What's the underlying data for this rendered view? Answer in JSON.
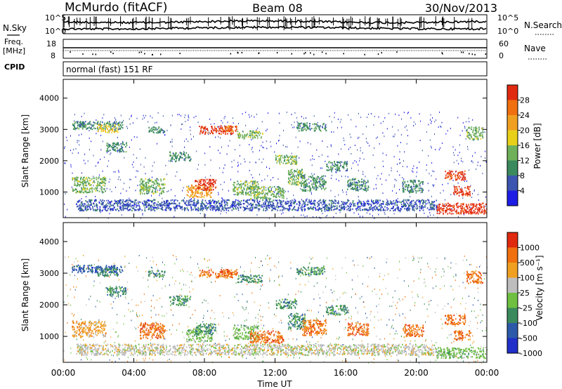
{
  "header": {
    "station": "McMurdo (fitACF)",
    "beam": "Beam 08",
    "date": "30/Nov/2013"
  },
  "noise_panel": {
    "left_label": "N.Sky",
    "right_label": "N.Search",
    "left_ticks": [
      "10^5",
      "10^0"
    ],
    "right_ticks": [
      "10^5",
      "10^0"
    ]
  },
  "freq_panel": {
    "left_label_line1": "Freq.",
    "left_label_line2": "[MHz]",
    "right_label": "Nave",
    "left_ticks": [
      "18",
      "8"
    ],
    "right_ticks": [
      "60",
      "0"
    ]
  },
  "cpid": {
    "label": "CPID",
    "value": "normal (fast) 151 RF"
  },
  "chart_data": [
    {
      "type": "heatmap",
      "name": "Power",
      "ylabel": "Slant Range [km]",
      "xlabel": "Time UT",
      "ylim": [
        180,
        4600
      ],
      "yticks": [
        "1000",
        "2000",
        "3000",
        "4000"
      ],
      "xticks": [
        "00:00",
        "04:00",
        "08:00",
        "12:00",
        "16:00",
        "20:00",
        "00:00"
      ],
      "colorbar_label": "Power [dB]",
      "colorbar_ticks": [
        "28",
        "24",
        "20",
        "16",
        "12",
        "8",
        "4"
      ],
      "colors": [
        "#1d1de6",
        "#3b55b0",
        "#3a8a5e",
        "#6fb05a",
        "#e8d01a",
        "#f0a020",
        "#f07010",
        "#e02a10"
      ]
    },
    {
      "type": "heatmap",
      "name": "Velocity",
      "ylabel": "Slant Range [km]",
      "xlabel": "Time UT",
      "ylim": [
        180,
        4600
      ],
      "yticks": [
        "1000",
        "2000",
        "3000",
        "4000"
      ],
      "xticks": [
        "00:00",
        "04:00",
        "08:00",
        "12:00",
        "16:00",
        "20:00",
        "00:00"
      ],
      "colorbar_label": "Velocity [m s⁻¹]",
      "colorbar_ticks": [
        "1000",
        "500",
        "100",
        "25",
        "-25",
        "-100",
        "-500",
        "-1000"
      ],
      "colors": [
        "#2030c8",
        "#2c5aa8",
        "#3a8a5e",
        "#6fc040",
        "#bdbdbd",
        "#f0a020",
        "#f07010",
        "#e02a10"
      ]
    }
  ],
  "time_axis_label": "Time UT"
}
